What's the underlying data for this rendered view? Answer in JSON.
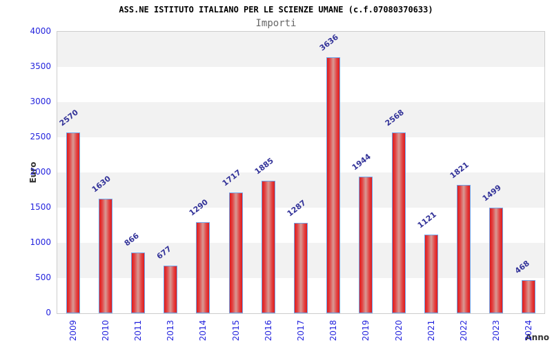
{
  "header": {
    "title": "ASS.NE ISTITUTO ITALIANO PER LE SCIENZE UMANE (c.f.07080370633)",
    "subtitle": "Importi"
  },
  "chart_data": {
    "type": "bar",
    "title": "ASS.NE ISTITUTO ITALIANO PER LE SCIENZE UMANE (c.f.07080370633)",
    "subtitle": "Importi",
    "xlabel": "Anno",
    "ylabel": "Euro",
    "categories": [
      "2009",
      "2010",
      "2011",
      "2013",
      "2014",
      "2015",
      "2016",
      "2017",
      "2018",
      "2019",
      "2020",
      "2021",
      "2022",
      "2023",
      "2024"
    ],
    "values": [
      2570,
      1630,
      866,
      677,
      1290,
      1717,
      1885,
      1287,
      3636,
      1944,
      2568,
      1121,
      1821,
      1499,
      468
    ],
    "ylim": [
      0,
      4000
    ],
    "ytick_step": 500,
    "ytick_labels": [
      "0",
      "500",
      "1000",
      "1500",
      "2000",
      "2500",
      "3000",
      "3500",
      "4000"
    ],
    "grid": "alternating horizontal bands",
    "legend_position": "none",
    "colors": {
      "bar_fill_edge": "#e01a1a",
      "bar_fill_center": "#d89a94",
      "bar_border": "#6fa3e8",
      "tick_label": "#2323dd",
      "value_label": "#333399",
      "band_gray": "#f2f2f2",
      "plot_border": "#cccccc",
      "subtitle_color": "#666666",
      "axis_title_color": "#333333",
      "title_color": "#000000"
    }
  }
}
